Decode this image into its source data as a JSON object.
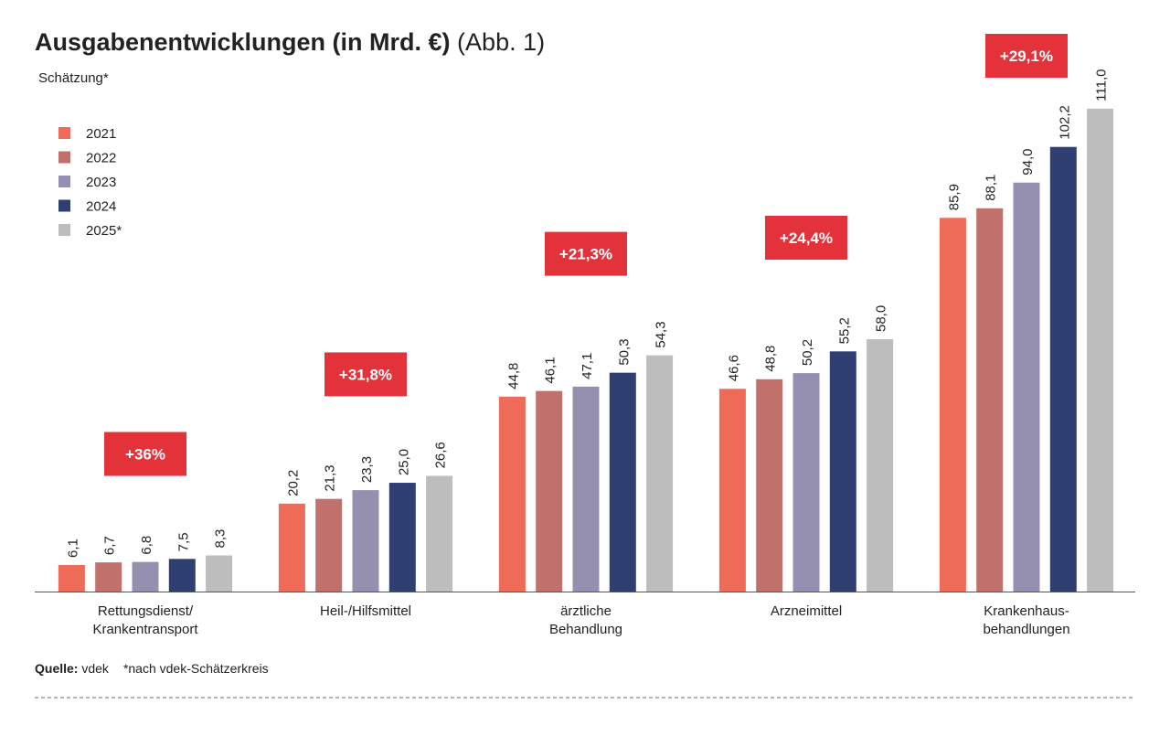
{
  "chart_data": {
    "type": "bar",
    "title": "Ausgabenentwicklungen (in Mrd. €)",
    "title_note": "(Abb. 1)",
    "subtitle": "Schätzung*",
    "categories": [
      "Rettungsdienst/\nKrankentransport",
      "Heil-/Hilfsmittel",
      "ärztliche\nBehandlung",
      "Arzneimittel",
      "Krankenhaus-\nbehandlungen"
    ],
    "series": [
      {
        "name": "2021",
        "color": "#ee6b58",
        "values": [
          6.1,
          20.2,
          44.8,
          46.6,
          85.9
        ],
        "value_labels": [
          "6,1",
          "20,2",
          "44,8",
          "46,6",
          "85,9"
        ]
      },
      {
        "name": "2022",
        "color": "#c0716c",
        "values": [
          6.7,
          21.3,
          46.1,
          48.8,
          88.1
        ],
        "value_labels": [
          "6,7",
          "21,3",
          "46,1",
          "48,8",
          "88,1"
        ]
      },
      {
        "name": "2023",
        "color": "#9590b0",
        "values": [
          6.8,
          23.3,
          47.1,
          50.2,
          94.0
        ],
        "value_labels": [
          "6,8",
          "23,3",
          "47,1",
          "50,2",
          "94,0"
        ]
      },
      {
        "name": "2024",
        "color": "#2f3f72",
        "values": [
          7.5,
          25.0,
          50.3,
          55.2,
          102.2
        ],
        "value_labels": [
          "7,5",
          "25,0",
          "50,3",
          "55,2",
          "102,2"
        ]
      },
      {
        "name": "2025*",
        "color": "#bdbdbd",
        "values": [
          8.3,
          26.6,
          54.3,
          58.0,
          111.0
        ],
        "value_labels": [
          "8,3",
          "26,6",
          "54,3",
          "58,0",
          "111,0"
        ]
      }
    ],
    "annotations": [
      "+36%",
      "+31,8%",
      "+21,3%",
      "+24,4%",
      "+29,1%"
    ],
    "annotation_color": "#e3323a",
    "ylim": [
      0,
      120
    ],
    "grid": false,
    "legend": "upper left",
    "source_label": "Quelle:",
    "source": "vdek",
    "footnote": "*nach vdek-Schätzerkreis"
  }
}
